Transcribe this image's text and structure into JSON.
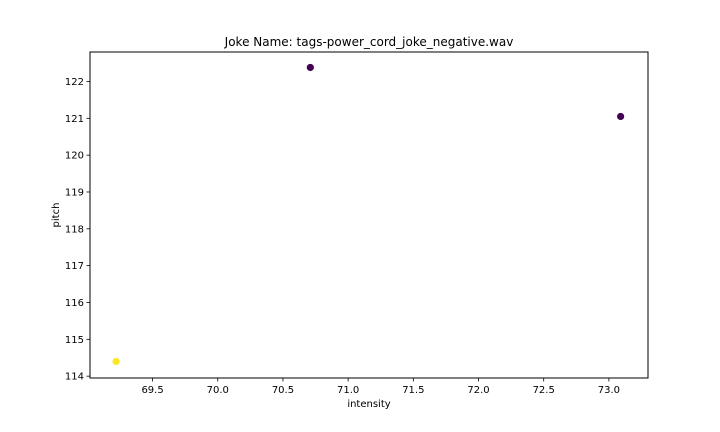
{
  "chart_data": {
    "type": "scatter",
    "title": "Joke Name: tags-power_cord_joke_negative.wav",
    "xlabel": "intensity",
    "ylabel": "pitch",
    "xlim": [
      69.02,
      73.3
    ],
    "ylim": [
      113.95,
      122.8
    ],
    "xticks": [
      69.5,
      70.0,
      70.5,
      71.0,
      71.5,
      72.0,
      72.5,
      73.0
    ],
    "xtick_labels": [
      "69.5",
      "70.0",
      "70.5",
      "71.0",
      "71.5",
      "72.0",
      "72.5",
      "73.0"
    ],
    "yticks": [
      114,
      115,
      116,
      117,
      118,
      119,
      120,
      121,
      122
    ],
    "ytick_labels": [
      "114",
      "115",
      "116",
      "117",
      "118",
      "119",
      "120",
      "121",
      "122"
    ],
    "grid": false,
    "points": [
      {
        "x": 69.22,
        "y": 114.4,
        "color": "#fde725"
      },
      {
        "x": 70.71,
        "y": 122.38,
        "color": "#440154"
      },
      {
        "x": 73.09,
        "y": 121.05,
        "color": "#440154"
      }
    ]
  }
}
